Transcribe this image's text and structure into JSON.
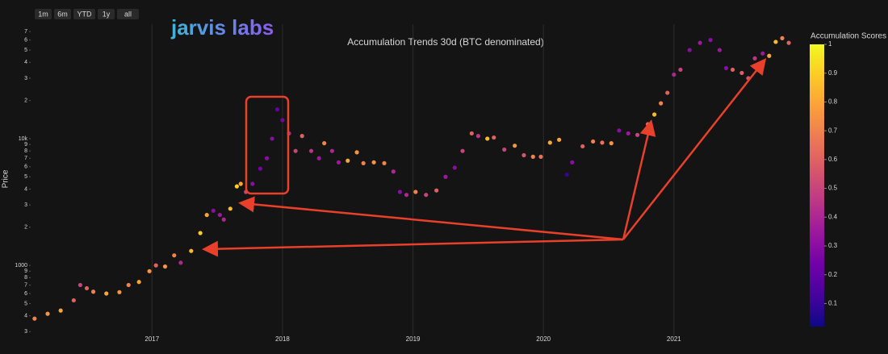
{
  "buttons": [
    "1m",
    "6m",
    "YTD",
    "1y",
    "all"
  ],
  "logo": "jarvis labs",
  "chart_data": {
    "type": "scatter",
    "title": "Accumulation Trends 30d (BTC denominated)",
    "y_label": "Price",
    "log_y": true,
    "x": [
      2016.1,
      2016.2,
      2016.3,
      2016.4,
      2016.45,
      2016.5,
      2016.55,
      2016.65,
      2016.75,
      2016.82,
      2016.9,
      2016.98,
      2017.03,
      2017.1,
      2017.17,
      2017.22,
      2017.3,
      2017.37,
      2017.42,
      2017.47,
      2017.52,
      2017.55,
      2017.6,
      2017.65,
      2017.68,
      2017.72,
      2017.77,
      2017.83,
      2017.88,
      2017.92,
      2017.96,
      2018.0,
      2018.05,
      2018.1,
      2018.15,
      2018.22,
      2018.28,
      2018.32,
      2018.38,
      2018.43,
      2018.5,
      2018.57,
      2018.62,
      2018.7,
      2018.78,
      2018.85,
      2018.9,
      2018.95,
      2019.02,
      2019.1,
      2019.18,
      2019.25,
      2019.32,
      2019.38,
      2019.45,
      2019.5,
      2019.57,
      2019.62,
      2019.7,
      2019.78,
      2019.85,
      2019.92,
      2019.98,
      2020.05,
      2020.12,
      2020.18,
      2020.22,
      2020.3,
      2020.38,
      2020.45,
      2020.52,
      2020.58,
      2020.65,
      2020.72,
      2020.8,
      2020.85,
      2020.9,
      2020.95,
      2021.0,
      2021.05,
      2021.12,
      2021.2,
      2021.28,
      2021.35,
      2021.4,
      2021.45,
      2021.52,
      2021.57,
      2021.62,
      2021.68,
      2021.73,
      2021.78,
      2021.83,
      2021.88
    ],
    "values": [
      380,
      415,
      440,
      530,
      700,
      660,
      620,
      600,
      615,
      700,
      740,
      900,
      1000,
      980,
      1200,
      1050,
      1300,
      1800,
      2500,
      2700,
      2500,
      2300,
      2800,
      4200,
      4400,
      3800,
      4400,
      5800,
      7000,
      10000,
      17000,
      14000,
      11000,
      8000,
      10500,
      8000,
      7000,
      9200,
      8000,
      6500,
      6700,
      7800,
      6400,
      6500,
      6400,
      5500,
      3800,
      3600,
      3800,
      3600,
      3900,
      5000,
      5900,
      8000,
      11000,
      10500,
      10000,
      10200,
      8200,
      8800,
      7400,
      7200,
      7200,
      9300,
      9800,
      5200,
      6500,
      8700,
      9500,
      9300,
      9200,
      11600,
      11000,
      10700,
      13000,
      15500,
      19000,
      23000,
      32000,
      35000,
      50000,
      57000,
      60000,
      50000,
      36000,
      35000,
      33000,
      30000,
      43000,
      47000,
      45000,
      58000,
      62000,
      57000
    ],
    "scores": [
      0.7,
      0.75,
      0.8,
      0.6,
      0.5,
      0.6,
      0.7,
      0.8,
      0.75,
      0.7,
      0.8,
      0.75,
      0.6,
      0.75,
      0.7,
      0.4,
      0.85,
      0.9,
      0.8,
      0.3,
      0.35,
      0.4,
      0.85,
      0.9,
      0.8,
      0.5,
      0.3,
      0.25,
      0.3,
      0.3,
      0.2,
      0.25,
      0.4,
      0.5,
      0.6,
      0.45,
      0.35,
      0.7,
      0.4,
      0.35,
      0.8,
      0.75,
      0.7,
      0.75,
      0.7,
      0.4,
      0.3,
      0.4,
      0.7,
      0.5,
      0.6,
      0.35,
      0.3,
      0.5,
      0.6,
      0.45,
      0.85,
      0.6,
      0.5,
      0.75,
      0.55,
      0.7,
      0.65,
      0.8,
      0.8,
      0.1,
      0.3,
      0.6,
      0.7,
      0.65,
      0.75,
      0.3,
      0.35,
      0.5,
      0.6,
      0.85,
      0.7,
      0.6,
      0.4,
      0.5,
      0.3,
      0.35,
      0.3,
      0.35,
      0.3,
      0.6,
      0.6,
      0.55,
      0.45,
      0.35,
      0.8,
      0.85,
      0.7,
      0.6
    ],
    "xlim": [
      2016.07,
      2021.96
    ],
    "xticks": [
      2017,
      2018,
      2019,
      2020,
      2021
    ],
    "ylim": [
      280,
      80000
    ],
    "yticks": [
      {
        "value": 300,
        "label": "3"
      },
      {
        "value": 400,
        "label": "4"
      },
      {
        "value": 500,
        "label": "5"
      },
      {
        "value": 600,
        "label": "6"
      },
      {
        "value": 700,
        "label": "7"
      },
      {
        "value": 800,
        "label": "8"
      },
      {
        "value": 900,
        "label": "9"
      },
      1000,
      {
        "value": 2000,
        "label": "2"
      },
      {
        "value": 3000,
        "label": "3"
      },
      {
        "value": 4000,
        "label": "4"
      },
      {
        "value": 5000,
        "label": "5"
      },
      {
        "value": 6000,
        "label": "6"
      },
      {
        "value": 7000,
        "label": "7"
      },
      {
        "value": 8000,
        "label": "8"
      },
      {
        "value": 9000,
        "label": "9"
      },
      {
        "value": 10000,
        "label": "10k"
      },
      {
        "value": 20000,
        "label": "2"
      },
      {
        "value": 30000,
        "label": "3"
      },
      {
        "value": 40000,
        "label": "4"
      },
      {
        "value": 50000,
        "label": "5"
      },
      {
        "value": 60000,
        "label": "6"
      },
      {
        "value": 70000,
        "label": "7"
      }
    ],
    "grid": true,
    "colorbar_title": "Accumulation Scores",
    "clim": [
      0.02,
      1
    ],
    "cticks": [
      0.1,
      0.2,
      0.3,
      0.4,
      0.5,
      0.6,
      0.7,
      0.8,
      0.9,
      1
    ],
    "colorscale": [
      "#0d0887",
      "#46039f",
      "#7201a8",
      "#9c179e",
      "#bd3786",
      "#d8576b",
      "#ed7953",
      "#fb9f3a",
      "#fdca26",
      "#f0f921"
    ]
  }
}
